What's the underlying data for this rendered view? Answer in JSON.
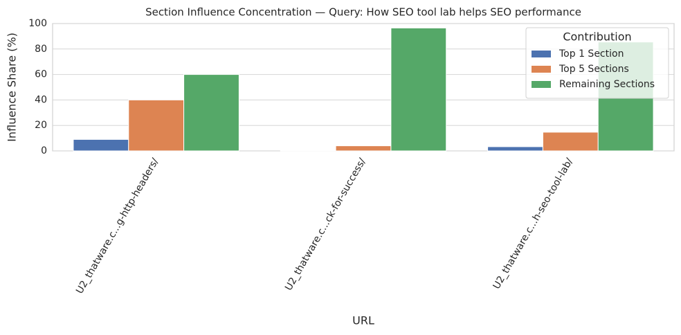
{
  "chart_data": {
    "type": "bar",
    "title": "Section Influence Concentration — Query: How SEO tool lab helps SEO performance",
    "x_label": "URL",
    "y_label": "Influence Share (%)",
    "categories": [
      "U2_thatware.c...g-http-headers/",
      "U2_thatware.c...ck-for-success/",
      "U2_thatware.c...h-seo-tool-lab/"
    ],
    "series": [
      {
        "name": "Top 1 Section",
        "color": "#4c72b0",
        "values": [
          9,
          0.5,
          3.3
        ]
      },
      {
        "name": "Top 5 Sections",
        "color": "#dd8452",
        "values": [
          40,
          4,
          14.7
        ]
      },
      {
        "name": "Remaining Sections",
        "color": "#55a868",
        "values": [
          60,
          96.5,
          85.5
        ]
      }
    ],
    "legend_title": "Contribution",
    "legend_position": "upper right",
    "ylim": [
      0,
      100
    ],
    "yticks": [
      0,
      20,
      40,
      60,
      80,
      100
    ],
    "grid": true
  }
}
